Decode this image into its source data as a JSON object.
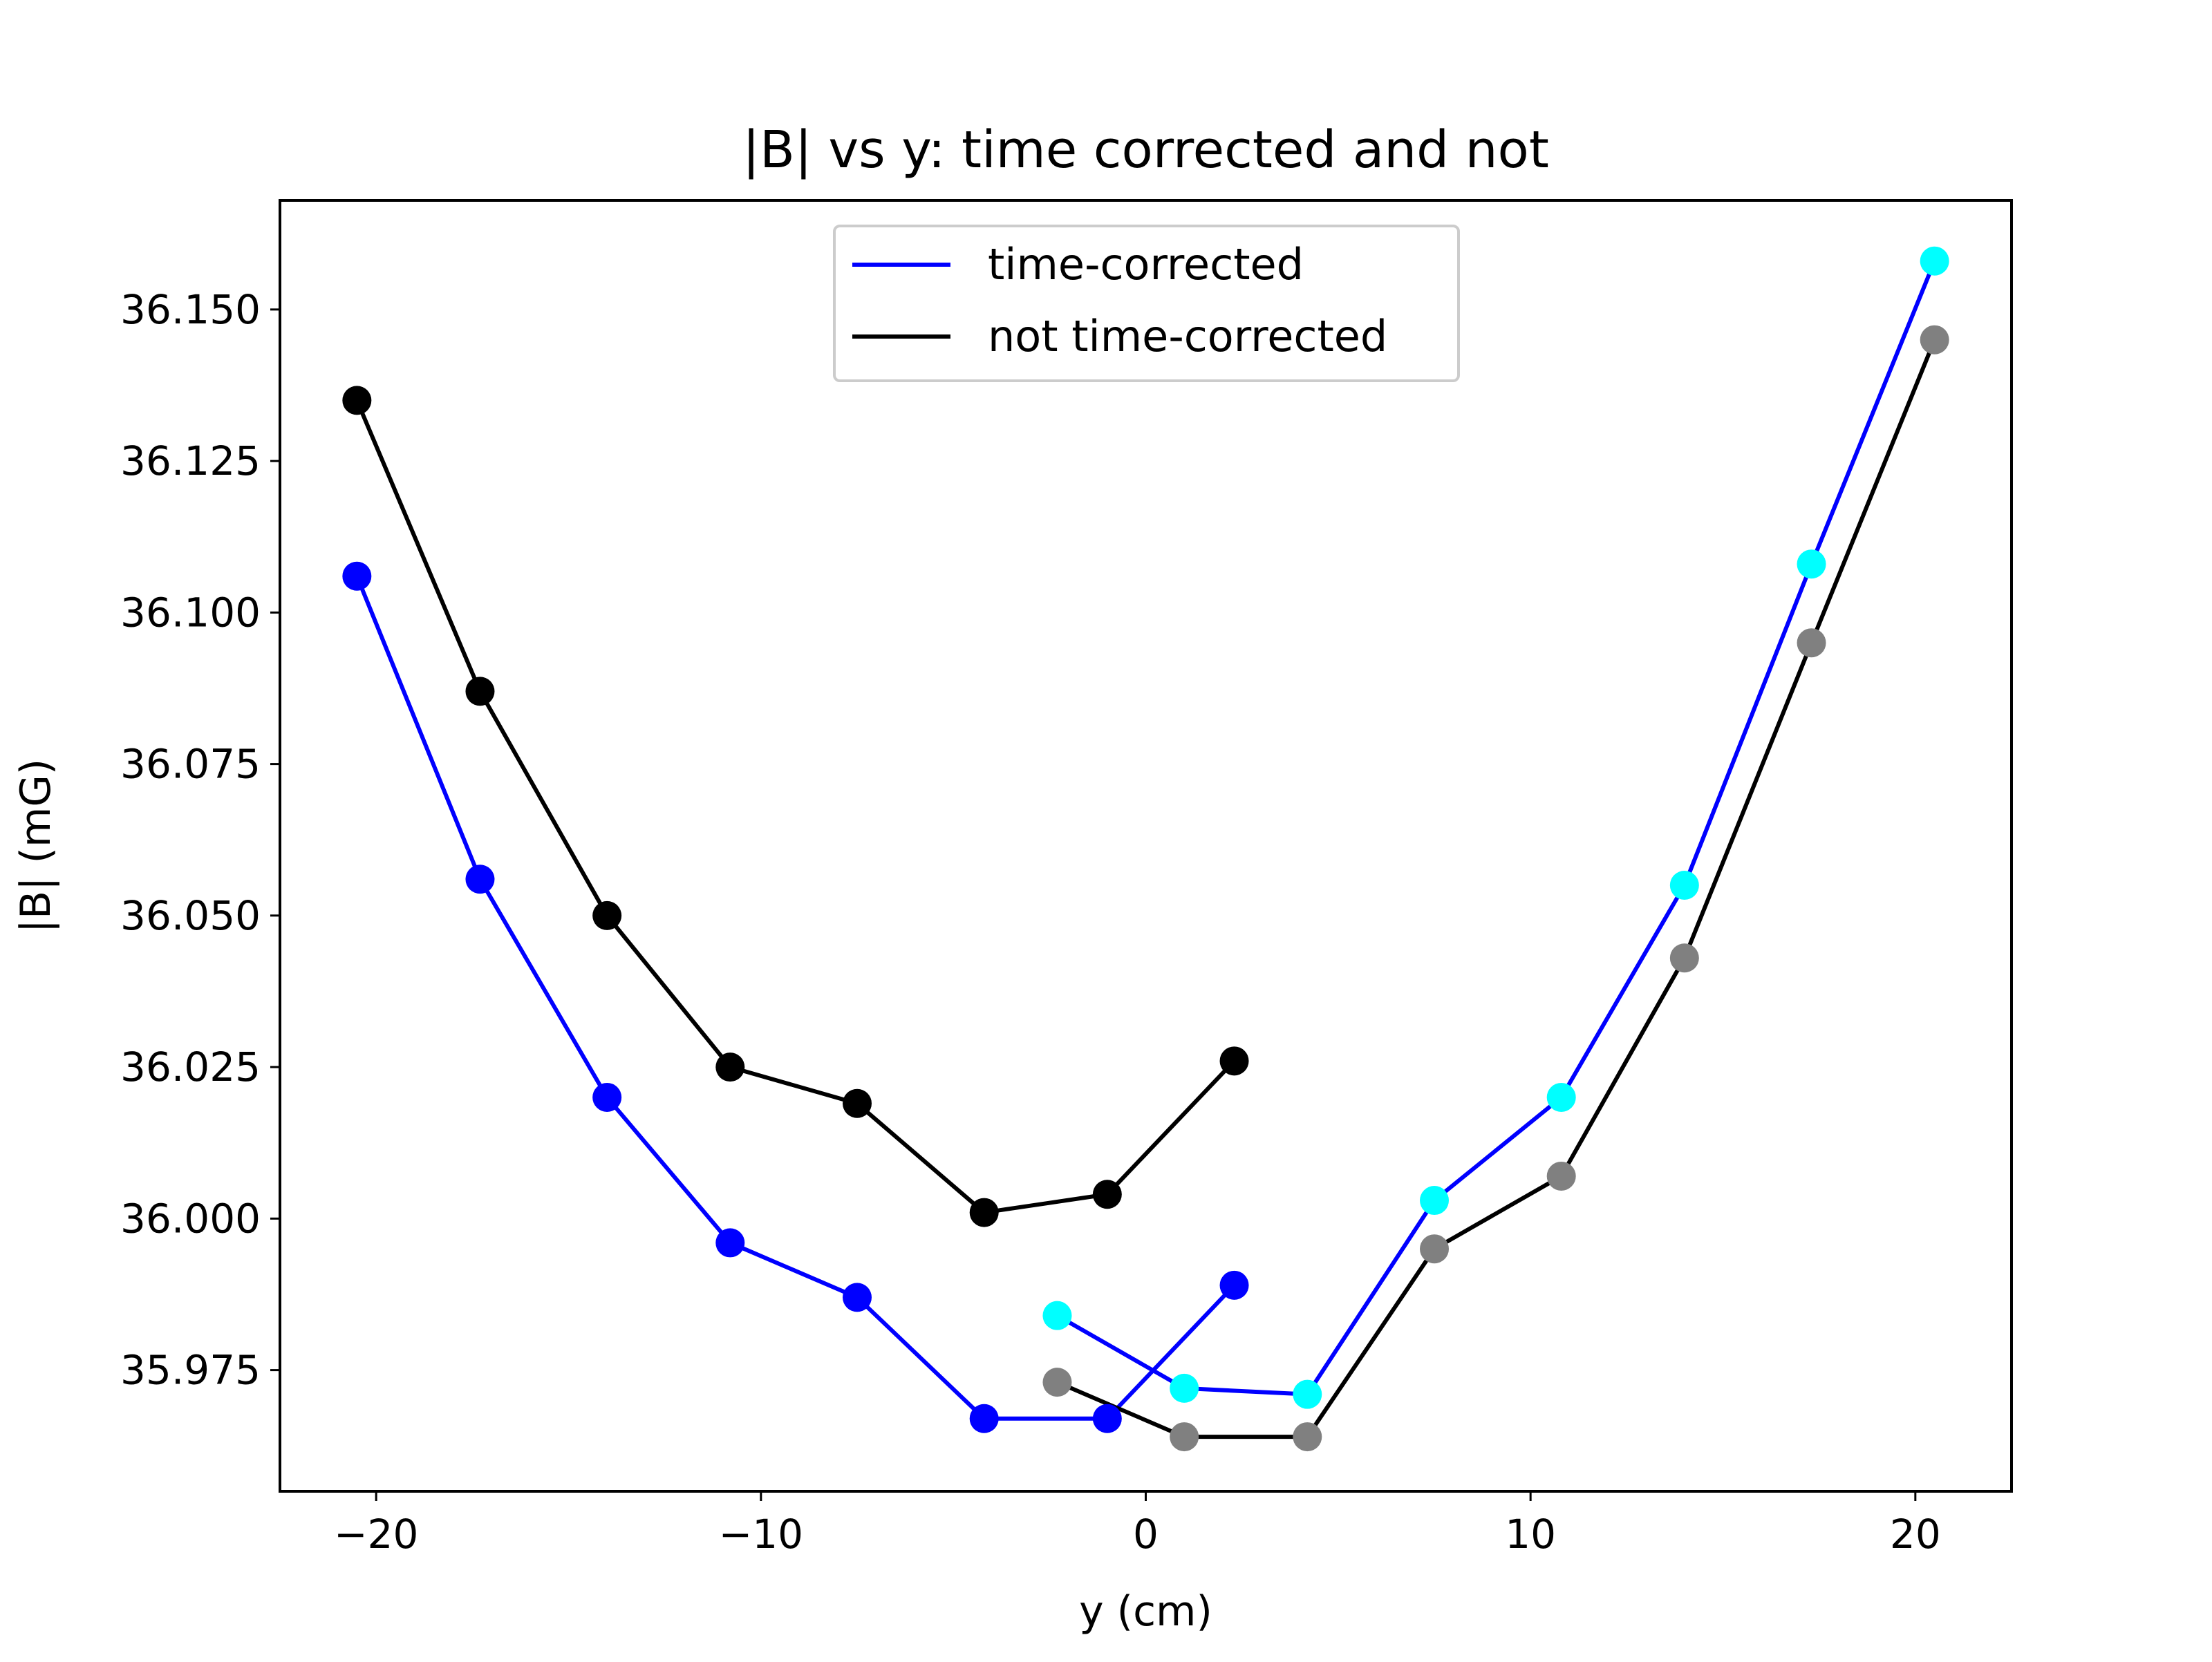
{
  "chart_data": {
    "type": "line",
    "title": "|B| vs y: time corrected and not",
    "xlabel": "y (cm)",
    "ylabel": "|B| (mG)",
    "xlim": [
      -22.5,
      22.5
    ],
    "ylim": [
      35.955,
      36.168
    ],
    "xticks": [
      -20,
      -10,
      0,
      10,
      20
    ],
    "xtick_labels": [
      "−20",
      "−10",
      "0",
      "10",
      "20"
    ],
    "yticks": [
      35.975,
      36.0,
      36.025,
      36.05,
      36.075,
      36.1,
      36.125,
      36.15
    ],
    "ytick_labels": [
      "35.975",
      "36.000",
      "36.025",
      "36.050",
      "36.075",
      "36.100",
      "36.125",
      "36.150"
    ],
    "grid": false,
    "legend_position": "top-center",
    "legend": [
      {
        "label": "time-corrected",
        "color": "#0000ff"
      },
      {
        "label": "not time-corrected",
        "color": "#000000"
      }
    ],
    "series": [
      {
        "name": "time-corrected",
        "line_color": "#0000ff",
        "marker_color": "#0000ff",
        "x": [
          -20.5,
          -17.3,
          -14.0,
          -10.8,
          -7.5,
          -4.2,
          -1.0,
          2.3
        ],
        "y": [
          36.106,
          36.056,
          36.02,
          35.996,
          35.987,
          35.967,
          35.967,
          35.989
        ]
      },
      {
        "name": "time-corrected",
        "line_color": "#0000ff",
        "marker_color": "#00ffff",
        "x": [
          -2.3,
          1.0,
          4.2,
          7.5,
          10.8,
          14.0,
          17.3,
          20.5
        ],
        "y": [
          35.984,
          35.972,
          35.971,
          36.003,
          36.02,
          36.055,
          36.108,
          36.158
        ]
      },
      {
        "name": "not time-corrected",
        "line_color": "#000000",
        "marker_color": "#000000",
        "x": [
          -20.5,
          -17.3,
          -14.0,
          -10.8,
          -7.5,
          -4.2,
          -1.0,
          2.3
        ],
        "y": [
          36.135,
          36.087,
          36.05,
          36.025,
          36.019,
          36.001,
          36.004,
          36.026
        ]
      },
      {
        "name": "not time-corrected",
        "line_color": "#000000",
        "marker_color": "#808080",
        "x": [
          -2.3,
          1.0,
          4.2,
          7.5,
          10.8,
          14.0,
          17.3,
          20.5
        ],
        "y": [
          35.973,
          35.964,
          35.964,
          35.995,
          36.007,
          36.043,
          36.095,
          36.145
        ]
      }
    ]
  }
}
